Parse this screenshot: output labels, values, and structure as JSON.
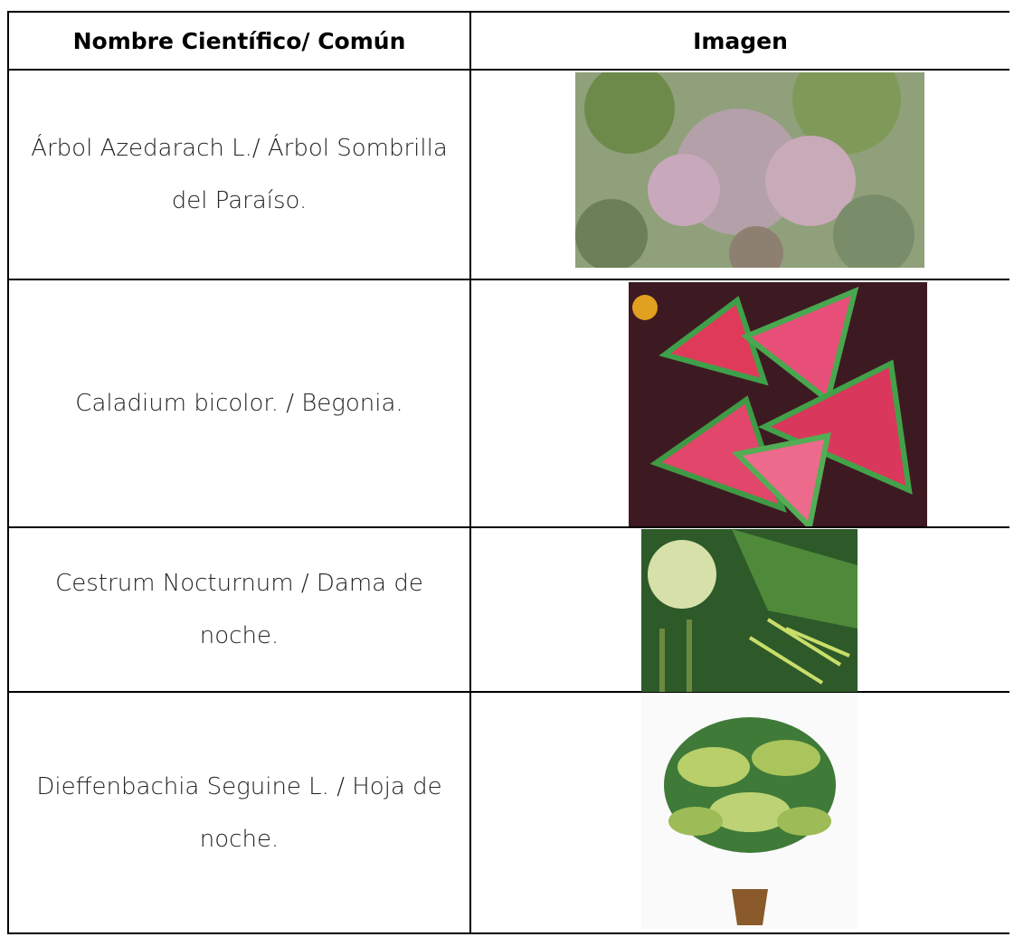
{
  "table": {
    "header": [
      "Nombre Científico/ Común",
      "Imagen"
    ],
    "rows": [
      "Árbol Azedarach L./ Árbol Sombrilla del Paraíso.",
      "Caladium bicolor. / Begonia.",
      "Cestrum Nocturnum / Dama de noche.",
      "Dieffenbachia Seguine L. / Hoja de noche."
    ]
  }
}
